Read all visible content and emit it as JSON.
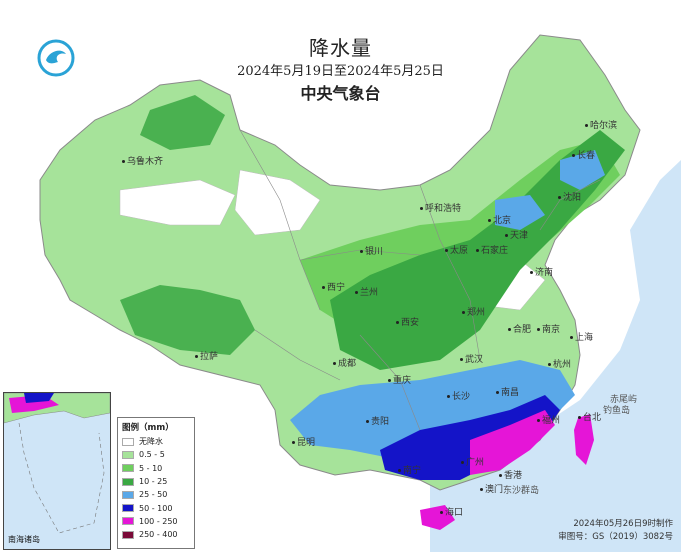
{
  "title": "降水量",
  "date_range": "2024年5月19日至2024年5月25日",
  "agency": "中央气象台",
  "legend": {
    "title": "图例（mm）",
    "items": [
      {
        "label": "无降水",
        "color": "#ffffff"
      },
      {
        "label": "0.5 - 5",
        "color": "#a6e39a"
      },
      {
        "label": "5 - 10",
        "color": "#6fcf5e"
      },
      {
        "label": "10 - 25",
        "color": "#3aa843"
      },
      {
        "label": "25 - 50",
        "color": "#5aa8e8"
      },
      {
        "label": "50 - 100",
        "color": "#1414c8"
      },
      {
        "label": "100 - 250",
        "color": "#e515d7"
      },
      {
        "label": "250 - 400",
        "color": "#7a0a38"
      }
    ]
  },
  "cities": {
    "urumqi": "乌鲁木齐",
    "harbin": "哈尔滨",
    "changchun": "长春",
    "shenyang": "沈阳",
    "hohhot": "呼和浩特",
    "beijing": "北京",
    "tianjin": "天津",
    "yinchuan": "银川",
    "taiyuan": "太原",
    "shijiazhuang": "石家庄",
    "jinan": "济南",
    "xining": "西宁",
    "lanzhou": "兰州",
    "zhengzhou": "郑州",
    "xian": "西安",
    "hefei": "合肥",
    "nanjing": "南京",
    "shanghai": "上海",
    "lhasa": "拉萨",
    "chengdu": "成都",
    "wuhan": "武汉",
    "hangzhou": "杭州",
    "chongqing": "重庆",
    "changsha": "长沙",
    "nanchang": "南昌",
    "guiyang": "贵阳",
    "fuzhou": "福州",
    "taipei": "台北",
    "kunming": "昆明",
    "nanning": "南宁",
    "guangzhou": "广州",
    "hongkong": "香港",
    "macau": "澳门",
    "haikou": "海口",
    "chiwei": "赤尾屿",
    "diaoyu": "钓鱼岛",
    "dongsha": "东沙群岛"
  },
  "inset_label": "南海诸岛",
  "credit_line1": "2024年05月26日9时制作",
  "credit_line2": "审图号：GS（2019）3082号",
  "colors": {
    "sea": "#cfe5f7",
    "border": "#8a8a8a"
  }
}
